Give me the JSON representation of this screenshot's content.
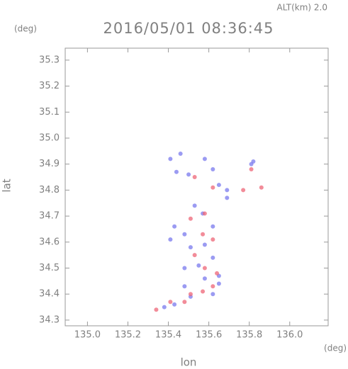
{
  "chart_data": {
    "type": "scatter",
    "title": "2016/05/01 08:36:45",
    "subtitle": "ALT(km) 2.0",
    "x_label": "lon",
    "y_label": "lat",
    "x_unit": "(deg)",
    "y_unit": "(deg)",
    "xlim": [
      134.89,
      136.19
    ],
    "ylim": [
      34.278,
      35.346
    ],
    "xticks": [
      {
        "value": 135,
        "label": "135.0"
      },
      135.2,
      135.4,
      135.6,
      135.8,
      {
        "value": 136,
        "label": "136.0"
      }
    ],
    "yticks": [
      34.3,
      34.4,
      34.5,
      34.6,
      34.7,
      34.8,
      34.9,
      {
        "value": 35,
        "label": "35.0"
      },
      35.1,
      35.2,
      35.3
    ],
    "series": [
      {
        "color": "#7a7aee",
        "x": [
          135.41,
          135.46,
          135.58,
          135.62,
          135.44,
          135.5,
          135.65,
          135.69,
          135.81,
          135.82,
          135.53,
          135.57,
          135.48,
          135.62,
          135.51,
          135.58,
          135.55,
          135.62,
          135.48,
          135.58,
          135.65,
          135.62,
          135.48,
          135.43,
          135.38,
          135.51,
          135.65,
          135.69,
          135.43,
          135.41
        ],
        "values": [
          34.92,
          34.94,
          34.92,
          34.88,
          34.87,
          34.86,
          34.82,
          34.8,
          34.9,
          34.91,
          34.74,
          34.71,
          34.63,
          34.66,
          34.58,
          34.59,
          34.51,
          34.54,
          34.5,
          34.46,
          34.44,
          34.4,
          34.43,
          34.36,
          34.35,
          34.39,
          34.47,
          34.77,
          34.66,
          34.61
        ]
      },
      {
        "color": "#ee6677",
        "x": [
          135.53,
          135.62,
          135.77,
          135.86,
          135.81,
          135.51,
          135.57,
          135.62,
          135.53,
          135.58,
          135.64,
          135.57,
          135.62,
          135.51,
          135.48,
          135.34,
          135.41,
          135.58
        ],
        "values": [
          34.85,
          34.81,
          34.8,
          34.81,
          34.88,
          34.69,
          34.63,
          34.61,
          34.55,
          34.5,
          34.48,
          34.41,
          34.43,
          34.4,
          34.37,
          34.34,
          34.37,
          34.71
        ]
      }
    ]
  }
}
